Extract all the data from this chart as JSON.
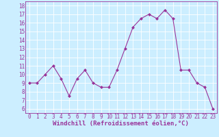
{
  "x": [
    0,
    1,
    2,
    3,
    4,
    5,
    6,
    7,
    8,
    9,
    10,
    11,
    12,
    13,
    14,
    15,
    16,
    17,
    18,
    19,
    20,
    21,
    22,
    23
  ],
  "y": [
    9.0,
    9.0,
    10.0,
    11.0,
    9.5,
    7.5,
    9.5,
    10.5,
    9.0,
    8.5,
    8.5,
    10.5,
    13.0,
    15.5,
    16.5,
    17.0,
    16.5,
    17.5,
    16.5,
    10.5,
    10.5,
    9.0,
    8.5,
    6.0
  ],
  "line_color": "#993399",
  "marker_color": "#993399",
  "bg_color": "#cceeff",
  "grid_color": "#ffffff",
  "xlabel": "Windchill (Refroidissement éolien,°C)",
  "xlim": [
    -0.5,
    23.5
  ],
  "ylim": [
    5.5,
    18.5
  ],
  "yticks": [
    6,
    7,
    8,
    9,
    10,
    11,
    12,
    13,
    14,
    15,
    16,
    17,
    18
  ],
  "xticks": [
    0,
    1,
    2,
    3,
    4,
    5,
    6,
    7,
    8,
    9,
    10,
    11,
    12,
    13,
    14,
    15,
    16,
    17,
    18,
    19,
    20,
    21,
    22,
    23
  ],
  "tick_label_color": "#993399",
  "axis_label_color": "#993399",
  "axis_color": "#993399",
  "font_size": 5.5,
  "xlabel_fontsize": 6.5
}
